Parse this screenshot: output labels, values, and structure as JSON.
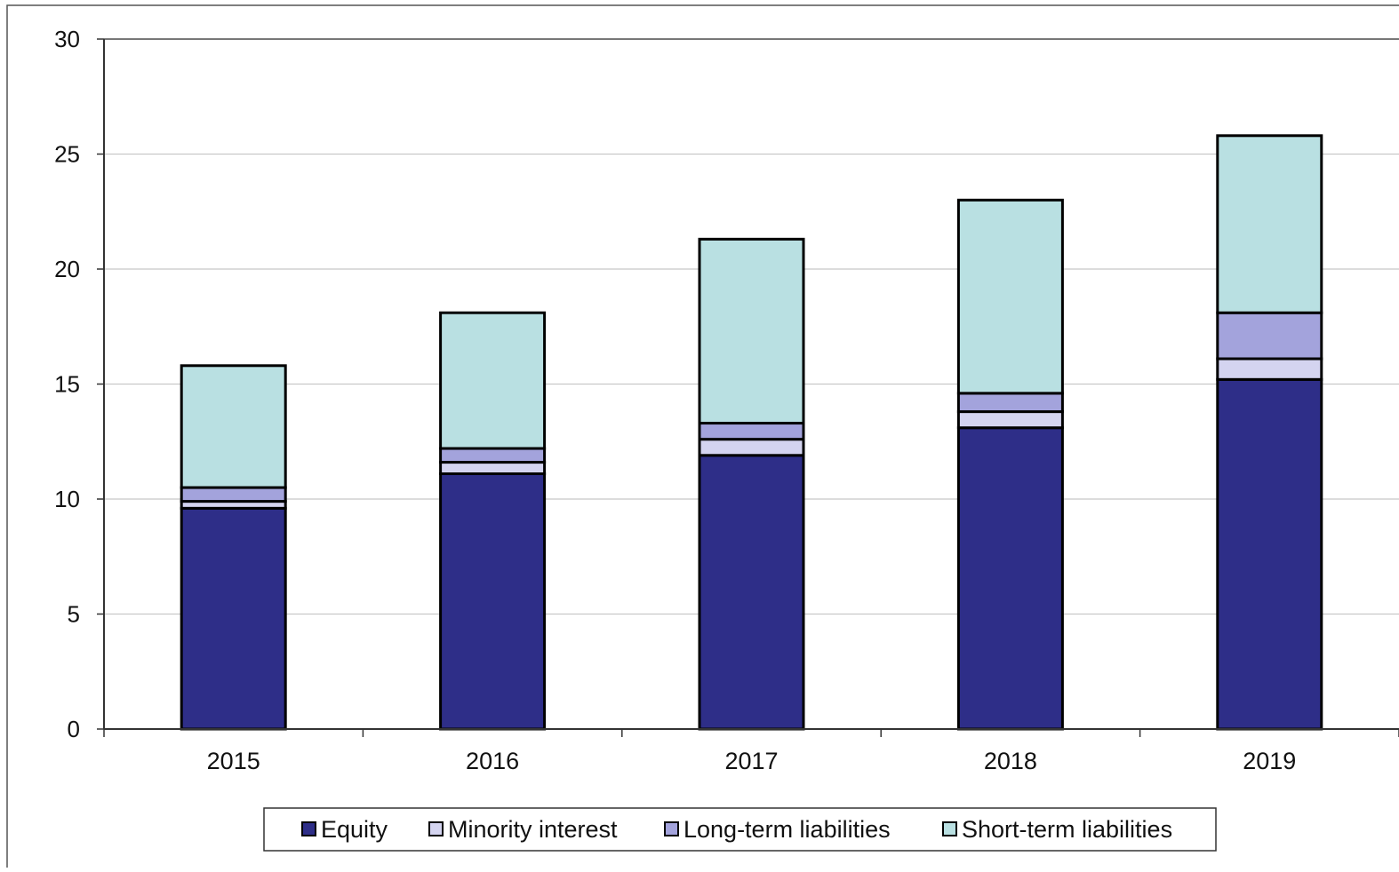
{
  "chart_data": {
    "type": "bar",
    "stacked": true,
    "categories": [
      "2015",
      "2016",
      "2017",
      "2018",
      "2019"
    ],
    "series": [
      {
        "name": "Equity",
        "color": "#2e2e88",
        "values": [
          9.6,
          11.1,
          11.9,
          13.1,
          15.2
        ]
      },
      {
        "name": "Minority interest",
        "color": "#d4d4f0",
        "values": [
          0.3,
          0.5,
          0.7,
          0.7,
          0.9
        ]
      },
      {
        "name": "Long-term liabilities",
        "color": "#a3a3dc",
        "values": [
          0.6,
          0.6,
          0.7,
          0.8,
          2.0
        ]
      },
      {
        "name": "Short-term liabilities",
        "color": "#b9e0e2",
        "values": [
          5.3,
          5.9,
          8.0,
          8.4,
          7.7
        ]
      }
    ],
    "ylim": [
      0,
      30
    ],
    "yticks": [
      "0",
      "5",
      "10",
      "15",
      "20",
      "25",
      "30"
    ],
    "grid": true,
    "legend": "bottom"
  }
}
